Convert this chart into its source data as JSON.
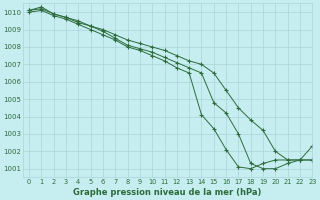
{
  "xlabel": "Graphe pression niveau de la mer (hPa)",
  "bg_color": "#c6eef0",
  "grid_color": "#a8d4d8",
  "line_color": "#2d6b3c",
  "ylim": [
    1000.5,
    1010.5
  ],
  "xlim": [
    -0.5,
    23
  ],
  "yticks": [
    1001,
    1002,
    1003,
    1004,
    1005,
    1006,
    1007,
    1008,
    1009,
    1010
  ],
  "xticks": [
    0,
    1,
    2,
    3,
    4,
    5,
    6,
    7,
    8,
    9,
    10,
    11,
    12,
    13,
    14,
    15,
    16,
    17,
    18,
    19,
    20,
    21,
    22,
    23
  ],
  "line1": [
    1010.0,
    1010.1,
    1009.8,
    1009.6,
    1009.3,
    1009.0,
    1008.7,
    1008.4,
    1008.0,
    1007.8,
    1007.5,
    1007.2,
    1006.8,
    1006.5,
    1004.1,
    1003.3,
    1002.1,
    1001.1,
    1001.0,
    1001.3,
    1001.5,
    1001.5,
    1001.5,
    1001.5
  ],
  "line2": [
    1010.1,
    1010.3,
    1009.9,
    1009.7,
    1009.4,
    1009.2,
    1008.9,
    1008.5,
    1008.1,
    1007.9,
    1007.7,
    1007.4,
    1007.1,
    1006.8,
    1006.5,
    1004.8,
    1004.2,
    1003.0,
    1001.3,
    1001.0,
    1001.0,
    1001.3,
    1001.5,
    1001.5
  ],
  "line3": [
    1010.1,
    1010.2,
    1009.9,
    1009.7,
    1009.5,
    1009.2,
    1009.0,
    1008.7,
    1008.4,
    1008.2,
    1008.0,
    1007.8,
    1007.5,
    1007.2,
    1007.0,
    1006.5,
    1005.5,
    1004.5,
    1003.8,
    1003.2,
    1002.0,
    1001.5,
    1001.5,
    1002.3
  ]
}
